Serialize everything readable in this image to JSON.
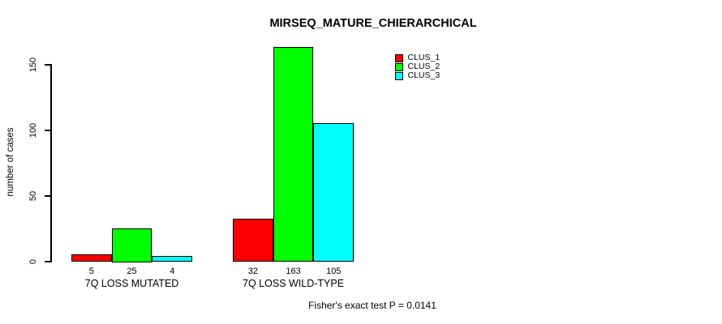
{
  "chart_data": {
    "type": "bar",
    "title": "MIRSEQ_MATURE_CHIERARCHICAL",
    "xlabel": "",
    "ylabel": "number of cases",
    "ylim": [
      0,
      150
    ],
    "yticks": [
      0,
      50,
      100,
      150
    ],
    "grid": false,
    "legend_position": "top-right-inside",
    "categories": [
      "7Q LOSS MUTATED",
      "7Q LOSS WILD-TYPE"
    ],
    "series": [
      {
        "name": "CLUS_1",
        "color": "#ff0000",
        "values": [
          5,
          32
        ]
      },
      {
        "name": "CLUS_2",
        "color": "#00ff00",
        "values": [
          25,
          163
        ]
      },
      {
        "name": "CLUS_3",
        "color": "#00ffff",
        "values": [
          4,
          105
        ]
      }
    ],
    "bar_value_labels": [
      [
        "5",
        "25",
        "4"
      ],
      [
        "32",
        "163",
        "105"
      ]
    ],
    "annotation": "Fisher's exact test P = 0.0141",
    "bar_border_color": "#000000",
    "background_color": "#ffffff"
  }
}
